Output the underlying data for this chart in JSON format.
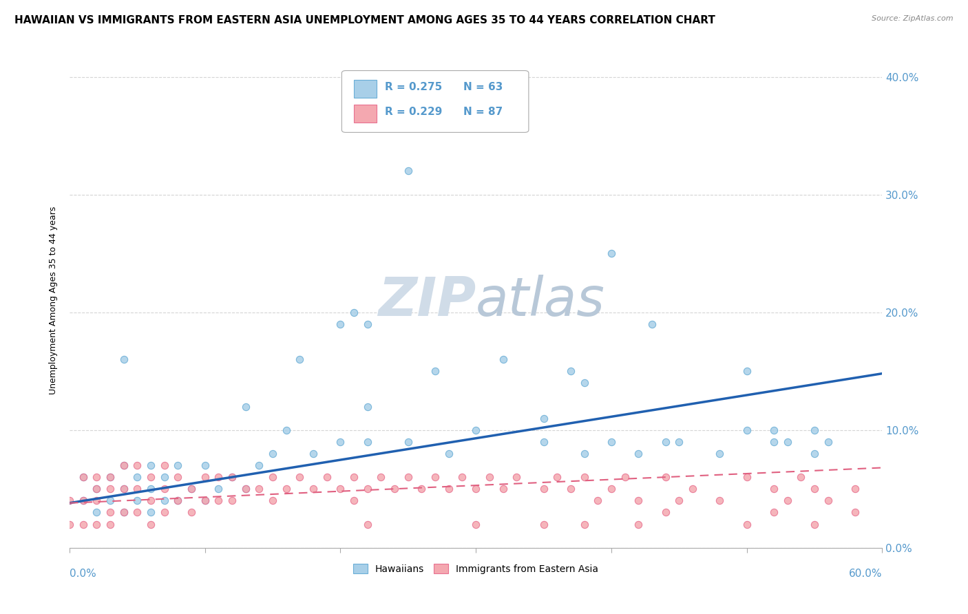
{
  "title": "HAWAIIAN VS IMMIGRANTS FROM EASTERN ASIA UNEMPLOYMENT AMONG AGES 35 TO 44 YEARS CORRELATION CHART",
  "source": "Source: ZipAtlas.com",
  "ylabel": "Unemployment Among Ages 35 to 44 years",
  "ytick_vals": [
    0.0,
    0.1,
    0.2,
    0.3,
    0.4
  ],
  "ytick_labels": [
    "0.0%",
    "10.0%",
    "20.0%",
    "30.0%",
    "40.0%"
  ],
  "xlim": [
    0.0,
    0.6
  ],
  "ylim": [
    0.0,
    0.42
  ],
  "legend1_r": "R = 0.275",
  "legend1_n": "N = 63",
  "legend2_r": "R = 0.229",
  "legend2_n": "N = 87",
  "hawaiian_color": "#a8cfe8",
  "immigrant_color": "#f4a8b0",
  "hawaiian_edge_color": "#6aaed6",
  "immigrant_edge_color": "#e87090",
  "hawaiian_line_color": "#2060b0",
  "immigrant_line_color": "#e06080",
  "watermark_zip": "ZIP",
  "watermark_atlas": "atlas",
  "watermark_color": "#d0dce8",
  "background_color": "#ffffff",
  "grid_color": "#d0d0d0",
  "tick_color": "#5599cc",
  "title_fontsize": 11,
  "axis_label_fontsize": 9,
  "tick_fontsize": 11,
  "hawaiian_line_x": [
    0.0,
    0.6
  ],
  "hawaiian_line_y": [
    0.038,
    0.148
  ],
  "immigrant_line_x": [
    0.0,
    0.6
  ],
  "immigrant_line_y": [
    0.038,
    0.068
  ]
}
